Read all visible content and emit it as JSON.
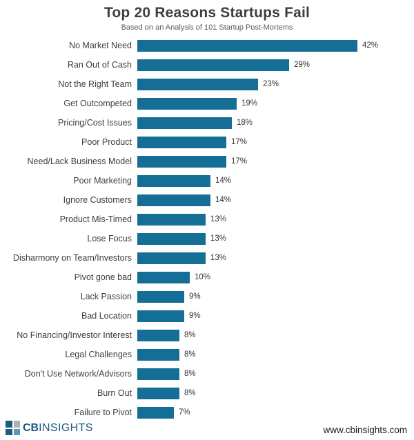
{
  "header": {
    "title": "Top 20 Reasons Startups Fail",
    "subtitle": "Based on an Analysis of 101 Startup Post-Mortems"
  },
  "chart_data": {
    "type": "bar",
    "orientation": "horizontal",
    "title": "Top 20 Reasons Startups Fail",
    "subtitle": "Based on an Analysis of 101 Startup Post-Mortems",
    "xlabel": "",
    "ylabel": "",
    "xlim": [
      0,
      45
    ],
    "grid": false,
    "legend": false,
    "bar_color": "#146e96",
    "categories": [
      "No Market Need",
      "Ran Out of Cash",
      "Not the Right Team",
      "Get Outcompeted",
      "Pricing/Cost Issues",
      "Poor Product",
      "Need/Lack Business Model",
      "Poor Marketing",
      "Ignore Customers",
      "Product Mis-Timed",
      "Lose Focus",
      "Disharmony on Team/Investors",
      "Pivot gone bad",
      "Lack Passion",
      "Bad Location",
      "No Financing/Investor Interest",
      "Legal Challenges",
      "Don't Use Network/Advisors",
      "Burn Out",
      "Failure to Pivot"
    ],
    "values": [
      42,
      29,
      23,
      19,
      18,
      17,
      17,
      14,
      14,
      13,
      13,
      13,
      10,
      9,
      9,
      8,
      8,
      8,
      8,
      7
    ],
    "value_labels": [
      "42%",
      "29%",
      "23%",
      "19%",
      "18%",
      "17%",
      "17%",
      "14%",
      "14%",
      "13%",
      "13%",
      "13%",
      "10%",
      "9%",
      "9%",
      "8%",
      "8%",
      "8%",
      "8%",
      "7%"
    ]
  },
  "footer": {
    "brand_cb": "CB",
    "brand_insights": "INSIGHTS",
    "website": "www.cbinsights.com"
  },
  "colors": {
    "bar": "#146e96",
    "title": "#3b4045",
    "brand": "#1d5b80"
  }
}
